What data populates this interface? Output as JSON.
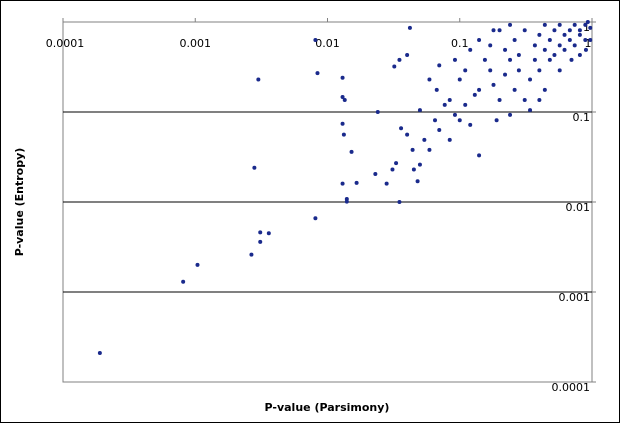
{
  "chart_data": {
    "type": "scatter",
    "x_label": "P-value (Parsimony)",
    "y_label": "P-value (Entropy)",
    "xscale": "log",
    "yscale": "log",
    "grid": "y",
    "color": "#1a2a8c",
    "xlim": [
      0.0001,
      1
    ],
    "ylim": [
      0.0001,
      1
    ],
    "xticks": [
      0.0001,
      0.001,
      0.01,
      0.1,
      1
    ],
    "yticks": [
      0.0001,
      0.001,
      0.01,
      0.1,
      1
    ],
    "x": [
      0.00019,
      0.00081,
      0.00104,
      0.00266,
      0.0031,
      0.0031,
      0.0036,
      0.0081,
      0.0028,
      0.003,
      0.0084,
      0.0081,
      0.013,
      0.013,
      0.0135,
      0.013,
      0.0133,
      0.0152,
      0.013,
      0.014,
      0.014,
      0.0166,
      0.023,
      0.024,
      0.028,
      0.031,
      0.033,
      0.035,
      0.035,
      0.032,
      0.04,
      0.042,
      0.036,
      0.04,
      0.044,
      0.045,
      0.048,
      0.05,
      0.054,
      0.059,
      0.065,
      0.07,
      0.07,
      0.067,
      0.077,
      0.084,
      0.084,
      0.092,
      0.1,
      0.1,
      0.11,
      0.12,
      0.13,
      0.14,
      0.14,
      0.155,
      0.17,
      0.17,
      0.18,
      0.2,
      0.22,
      0.22,
      0.24,
      0.26,
      0.26,
      0.28,
      0.28,
      0.31,
      0.31,
      0.34,
      0.37,
      0.37,
      0.4,
      0.4,
      0.44,
      0.44,
      0.48,
      0.48,
      0.52,
      0.52,
      0.57,
      0.57,
      0.62,
      0.62,
      0.68,
      0.68,
      0.74,
      0.74,
      0.81,
      0.81,
      0.89,
      0.89,
      0.97,
      0.93,
      0.2,
      0.24,
      0.12,
      0.14,
      0.18,
      0.11,
      0.092,
      0.059,
      0.05,
      0.34,
      0.44,
      0.57,
      0.7,
      0.81,
      0.97,
      0.9,
      0.4,
      0.24,
      0.19
    ],
    "values": [
      0.00021,
      0.0013,
      0.002,
      0.0026,
      0.0036,
      0.0046,
      0.0045,
      0.0066,
      0.024,
      0.23,
      0.27,
      0.63,
      0.24,
      0.147,
      0.136,
      0.074,
      0.056,
      0.036,
      0.016,
      0.0108,
      0.0101,
      0.0163,
      0.0205,
      0.1,
      0.016,
      0.023,
      0.027,
      0.01,
      0.38,
      0.32,
      0.43,
      0.86,
      0.066,
      0.056,
      0.038,
      0.023,
      0.017,
      0.026,
      0.049,
      0.038,
      0.081,
      0.063,
      0.33,
      0.176,
      0.12,
      0.136,
      0.049,
      0.093,
      0.23,
      0.081,
      0.12,
      0.072,
      0.155,
      0.176,
      0.033,
      0.38,
      0.29,
      0.55,
      0.2,
      0.136,
      0.26,
      0.49,
      0.093,
      0.176,
      0.63,
      0.29,
      0.43,
      0.136,
      0.81,
      0.23,
      0.38,
      0.55,
      0.72,
      0.29,
      0.49,
      0.93,
      0.63,
      0.38,
      0.81,
      0.43,
      0.55,
      0.93,
      0.72,
      0.49,
      0.81,
      0.63,
      0.93,
      0.55,
      0.72,
      0.81,
      0.93,
      0.63,
      0.86,
      1,
      0.81,
      0.93,
      0.49,
      0.63,
      0.81,
      0.29,
      0.38,
      0.23,
      0.105,
      0.105,
      0.176,
      0.29,
      0.38,
      0.43,
      0.63,
      0.49,
      0.136,
      0.38,
      0.081
    ]
  }
}
